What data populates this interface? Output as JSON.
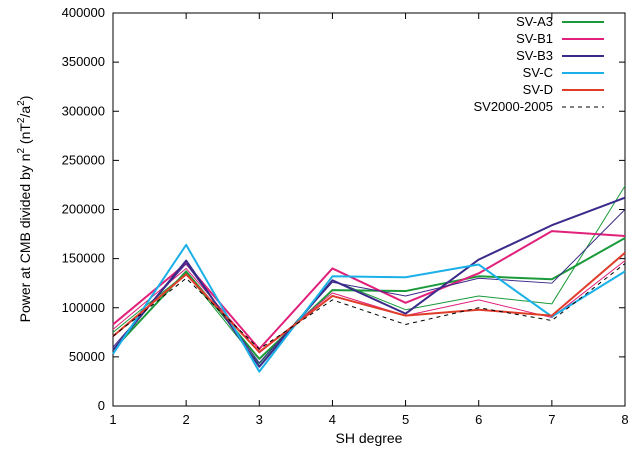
{
  "chart_data": {
    "type": "line",
    "xlabel": "SH degree",
    "ylabel_parts": {
      "prefix": "Power at CMB divided by n",
      "sup1": "2",
      "mid": " (nT",
      "sup2": "2",
      "suffix": "/a",
      "sup3": "2",
      "end": ")"
    },
    "xlim": [
      1,
      8
    ],
    "ylim": [
      0,
      400000
    ],
    "x_ticks": [
      1,
      2,
      3,
      4,
      5,
      6,
      7,
      8
    ],
    "y_ticks": [
      0,
      50000,
      100000,
      150000,
      200000,
      250000,
      300000,
      350000,
      400000
    ],
    "legend_position": "top-right",
    "x": [
      1,
      2,
      3,
      4,
      5,
      6,
      7,
      8
    ],
    "series": [
      {
        "name": "SV-A3",
        "color": "#1a9a3a",
        "width": 2,
        "dash": "",
        "values": [
          57000,
          137000,
          48000,
          118000,
          117000,
          132000,
          129000,
          171000
        ]
      },
      {
        "name": "SV-A3",
        "color": "#1a9a3a",
        "width": 1,
        "dash": "",
        "legend": false,
        "values": [
          75000,
          135000,
          43000,
          128000,
          98000,
          112000,
          104000,
          224000
        ]
      },
      {
        "name": "SV-B1",
        "color": "#e0207a",
        "width": 2,
        "dash": "",
        "values": [
          83000,
          145000,
          58000,
          140000,
          105000,
          135000,
          178000,
          173000
        ]
      },
      {
        "name": "SV-B1",
        "color": "#e0207a",
        "width": 1,
        "dash": "",
        "legend": false,
        "values": [
          78000,
          140000,
          54000,
          115000,
          92000,
          108000,
          90000,
          148000
        ]
      },
      {
        "name": "SV-B3",
        "color": "#3b2a8a",
        "width": 2,
        "dash": "",
        "values": [
          57000,
          148000,
          40000,
          128000,
          94000,
          149000,
          184000,
          212000
        ]
      },
      {
        "name": "SV-B3",
        "color": "#3b2a8a",
        "width": 1,
        "dash": "",
        "legend": false,
        "values": [
          60000,
          145000,
          44000,
          126000,
          112000,
          130000,
          125000,
          200000
        ]
      },
      {
        "name": "SV-C",
        "color": "#1ab0e8",
        "width": 2,
        "dash": "",
        "values": [
          53000,
          164000,
          35000,
          132000,
          131000,
          144000,
          91000,
          137000
        ]
      },
      {
        "name": "SV-D",
        "color": "#e03c2a",
        "width": 2,
        "dash": "",
        "values": [
          71000,
          134000,
          55000,
          112000,
          92000,
          98000,
          92000,
          156000
        ]
      },
      {
        "name": "SV2000-2005",
        "color": "#000000",
        "width": 1,
        "dash": "4,4",
        "values": [
          71000,
          130000,
          58000,
          108000,
          83000,
          100000,
          87000,
          145000
        ]
      }
    ]
  }
}
